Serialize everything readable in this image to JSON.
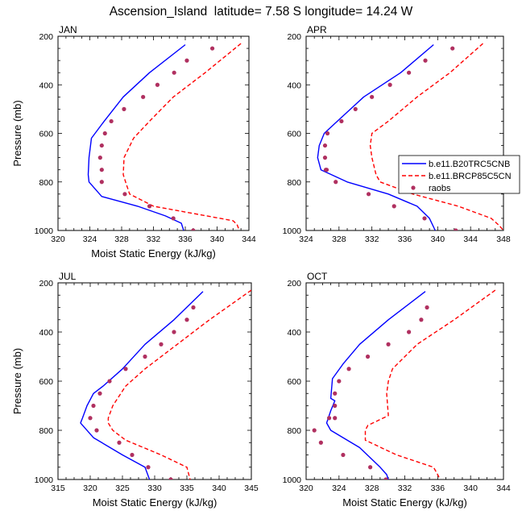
{
  "title": "Ascension_Island  latitude= 7.58 S longitude= 14.24 W",
  "colors": {
    "model1": "#0000ff",
    "model2": "#ff0000",
    "obs": "#b03060"
  },
  "legend": {
    "position": "right of top-right panel",
    "entries": [
      "b.e11.B20TRC5CNB",
      "b.e11.BRCP85C5CN",
      "raobs"
    ]
  },
  "chart_data": [
    {
      "type": "line",
      "panel": "JAN",
      "title": "JAN",
      "xlabel": "Moist Static Energy (kJ/kg)",
      "ylabel": "Pressure (mb)",
      "xlim": [
        320,
        344
      ],
      "ylim": [
        1000,
        200
      ],
      "xticks": [
        320,
        324,
        328,
        332,
        336,
        340,
        344
      ],
      "yticks": [
        200,
        400,
        600,
        800,
        1000
      ],
      "series": [
        {
          "name": "b.e11.B20TRC5CNB",
          "style": "solid",
          "x": [
            336.0,
            331.5,
            328.2,
            325.8,
            324.2,
            323.9,
            323.8,
            323.9,
            325.5,
            330.0,
            333.5,
            335.5,
            335.8
          ],
          "y": [
            235,
            350,
            450,
            550,
            620,
            700,
            770,
            800,
            860,
            900,
            940,
            970,
            1000
          ]
        },
        {
          "name": "b.e11.BRCP85C5CN",
          "style": "dashed",
          "x": [
            343.0,
            338.5,
            334.5,
            331.5,
            329.5,
            328.3,
            328.2,
            328.5,
            329.0,
            332.0,
            337.0,
            342.0,
            342.5,
            342.8
          ],
          "y": [
            230,
            350,
            450,
            550,
            620,
            700,
            770,
            800,
            850,
            900,
            930,
            960,
            975,
            1000
          ]
        },
        {
          "name": "raobs",
          "style": "dots",
          "x": [
            339.4,
            336.2,
            334.6,
            332.5,
            330.7,
            328.3,
            326.7,
            325.9,
            325.5,
            325.3,
            325.5,
            325.5,
            328.4,
            331.5,
            334.5,
            337.0
          ],
          "y": [
            250,
            300,
            350,
            400,
            450,
            500,
            550,
            600,
            650,
            700,
            750,
            800,
            850,
            900,
            950,
            1000
          ]
        }
      ]
    },
    {
      "type": "line",
      "panel": "APR",
      "title": "APR",
      "xlabel": "",
      "ylabel": "",
      "xlim": [
        324,
        348
      ],
      "ylim": [
        1000,
        200
      ],
      "xticks": [
        324,
        328,
        332,
        336,
        340,
        344,
        348
      ],
      "yticks": [
        200,
        400,
        600,
        800,
        1000
      ],
      "series": [
        {
          "name": "b.e11.B20TRC5CNB",
          "style": "solid",
          "x": [
            339.5,
            335.5,
            331.0,
            327.8,
            326.2,
            325.6,
            325.4,
            325.8,
            329.0,
            334.0,
            337.5,
            339.0,
            339.7
          ],
          "y": [
            235,
            350,
            450,
            550,
            600,
            650,
            700,
            750,
            800,
            850,
            900,
            950,
            1000
          ]
        },
        {
          "name": "b.e11.BRCP85C5CN",
          "style": "dashed",
          "x": [
            345.5,
            341.5,
            337.5,
            334.0,
            332.0,
            331.8,
            332.0,
            332.5,
            333.0,
            337.0,
            342.5,
            346.5,
            347.5,
            348.0
          ],
          "y": [
            230,
            350,
            450,
            550,
            600,
            650,
            700,
            770,
            800,
            850,
            900,
            950,
            980,
            1000
          ]
        },
        {
          "name": "raobs",
          "style": "dots",
          "x": [
            341.8,
            338.5,
            336.5,
            334.2,
            332.0,
            330.0,
            328.3,
            326.6,
            326.3,
            326.3,
            326.4,
            326.5,
            327.6,
            331.6,
            334.7,
            338.4,
            342.2
          ],
          "y": [
            250,
            300,
            350,
            400,
            450,
            500,
            550,
            600,
            650,
            700,
            750,
            750,
            800,
            850,
            900,
            950,
            1000
          ]
        }
      ]
    },
    {
      "type": "line",
      "panel": "JUL",
      "title": "JUL",
      "xlabel": "Moist Static Energy (kJ/kg)",
      "ylabel": "Pressure (mb)",
      "xlim": [
        315,
        345
      ],
      "ylim": [
        1000,
        200
      ],
      "xticks": [
        315,
        320,
        325,
        330,
        335,
        340,
        345
      ],
      "yticks": [
        200,
        400,
        600,
        800,
        1000
      ],
      "series": [
        {
          "name": "b.e11.B20TRC5CNB",
          "style": "solid",
          "x": [
            337.5,
            333.0,
            328.5,
            325.0,
            322.0,
            320.5,
            319.5,
            318.8,
            318.5,
            320.5,
            325.0,
            328.5,
            329.2
          ],
          "y": [
            235,
            350,
            450,
            550,
            620,
            650,
            700,
            750,
            770,
            830,
            900,
            950,
            1000
          ]
        },
        {
          "name": "b.e11.BRCP85C5CN",
          "style": "dashed",
          "x": [
            345.0,
            338.5,
            333.5,
            328.5,
            325.5,
            323.5,
            322.8,
            322.8,
            323.5,
            325.5,
            331.0,
            335.0,
            335.3,
            335.5
          ],
          "y": [
            230,
            350,
            450,
            550,
            620,
            700,
            750,
            770,
            800,
            840,
            900,
            950,
            980,
            1000
          ]
        },
        {
          "name": "raobs",
          "style": "dots",
          "x": [
            336.0,
            335.0,
            333.0,
            331.0,
            328.5,
            325.5,
            323.0,
            321.5,
            320.5,
            320.0,
            321.0,
            324.5,
            326.5,
            329.0,
            332.5
          ],
          "y": [
            300,
            350,
            400,
            450,
            500,
            550,
            600,
            650,
            700,
            750,
            800,
            850,
            900,
            950,
            1000
          ]
        }
      ]
    },
    {
      "type": "line",
      "panel": "OCT",
      "title": "OCT",
      "xlabel": "Moist Static Energy (kJ/kg)",
      "ylabel": "",
      "xlim": [
        320,
        344
      ],
      "ylim": [
        1000,
        200
      ],
      "xticks": [
        320,
        324,
        328,
        332,
        336,
        340,
        344
      ],
      "yticks": [
        200,
        400,
        600,
        800,
        1000
      ],
      "series": [
        {
          "name": "b.e11.B20TRC5CNB",
          "style": "solid",
          "x": [
            334.5,
            330.0,
            326.5,
            324.5,
            323.2,
            323.0,
            323.5,
            323.0,
            322.5,
            323.0,
            326.5,
            329.0,
            329.8,
            330.0
          ],
          "y": [
            235,
            350,
            450,
            530,
            590,
            670,
            680,
            720,
            770,
            800,
            870,
            950,
            980,
            1000
          ]
        },
        {
          "name": "b.e11.BRCP85C5CN",
          "style": "dashed",
          "x": [
            343.0,
            338.0,
            333.5,
            330.5,
            330.0,
            329.8,
            330.0,
            327.5,
            327.2,
            327.2,
            331.0,
            335.5,
            336.0,
            336.3
          ],
          "y": [
            230,
            350,
            450,
            550,
            600,
            650,
            740,
            780,
            800,
            840,
            900,
            950,
            980,
            1000
          ]
        },
        {
          "name": "raobs",
          "style": "dots",
          "x": [
            334.7,
            334.0,
            332.5,
            330.0,
            327.5,
            325.2,
            324.0,
            323.5,
            323.5,
            323.5,
            322.8,
            321.0,
            321.8,
            324.5,
            327.8,
            329.7
          ],
          "y": [
            300,
            350,
            400,
            450,
            500,
            550,
            600,
            650,
            700,
            750,
            750,
            800,
            850,
            900,
            950,
            1000
          ]
        }
      ]
    }
  ]
}
